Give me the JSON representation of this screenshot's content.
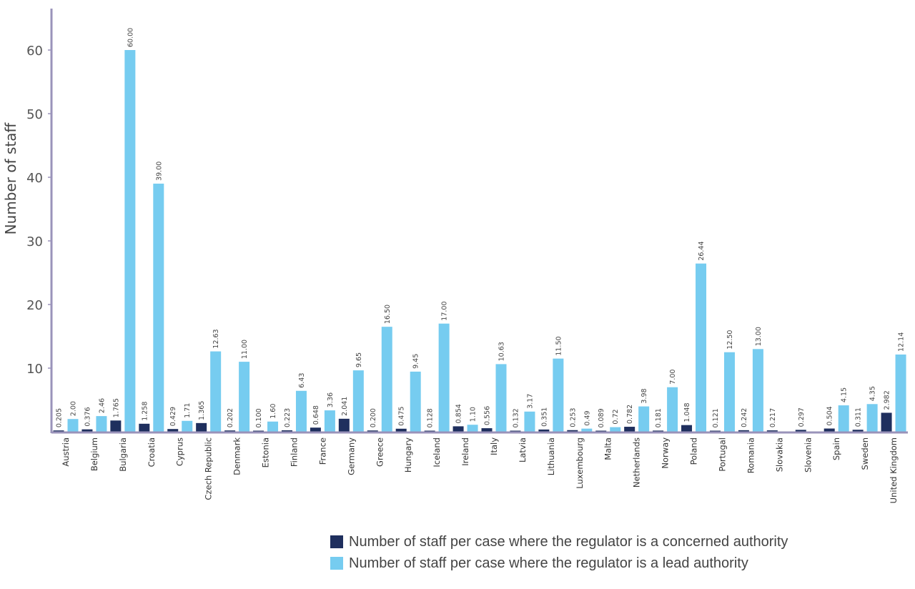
{
  "chart_data": {
    "type": "bar",
    "ylabel": "Number of staff",
    "xlabel": "",
    "ylim": [
      0,
      66
    ],
    "yticks": [
      10,
      20,
      30,
      40,
      50,
      60
    ],
    "grid": false,
    "legend_position": "bottom-right",
    "categories": [
      "Austria",
      "Belgium",
      "Bulgaria",
      "Croatia",
      "Cyprus",
      "Czech Republic",
      "Denmark",
      "Estonia",
      "Finland",
      "France",
      "Germany",
      "Greece",
      "Hungary",
      "Iceland",
      "Ireland",
      "Italy",
      "Latvia",
      "Lithuania",
      "Luxembourg",
      "Malta",
      "Netherlands",
      "Norway",
      "Poland",
      "Portugal",
      "Romania",
      "Slovakia",
      "Slovenia",
      "Spain",
      "Sweden",
      "United Kingdom"
    ],
    "series": [
      {
        "name": "Number of staff per case where the regulator is a concerned authority",
        "color": "#1f2f5e",
        "values": [
          0.205,
          0.376,
          1.765,
          1.258,
          0.429,
          1.365,
          0.202,
          0.1,
          0.223,
          0.648,
          2.041,
          0.2,
          0.475,
          0.128,
          0.854,
          0.556,
          0.132,
          0.351,
          0.253,
          0.089,
          0.782,
          0.181,
          1.048,
          0.121,
          0.242,
          0.217,
          0.297,
          0.504,
          0.311,
          2.982
        ],
        "labels": [
          "0.205",
          "0.376",
          "1.765",
          "1.258",
          "0.429",
          "1.365",
          "0.202",
          "0.100",
          "0.223",
          "0.648",
          "2.041",
          "0.200",
          "0.475",
          "0.128",
          "0.854",
          "0.556",
          "0.132",
          "0.351",
          "0.253",
          "0.089",
          "0.782",
          "0.181",
          "1.048",
          "0.121",
          "0.242",
          "0.217",
          "0.297",
          "0.504",
          "0.311",
          "2.982"
        ]
      },
      {
        "name": "Number of staff per case where the regulator is a lead authority",
        "color": "#76ccf0",
        "values": [
          2.0,
          2.46,
          60.0,
          39.0,
          1.71,
          12.63,
          11.0,
          1.6,
          6.43,
          3.36,
          9.65,
          16.5,
          9.45,
          17.0,
          1.1,
          10.63,
          3.17,
          11.5,
          0.49,
          0.72,
          3.98,
          7.0,
          26.44,
          12.5,
          13.0,
          null,
          null,
          4.15,
          4.35,
          12.14
        ],
        "labels": [
          "2.00",
          "2.46",
          "60.00",
          "39.00",
          "1.71",
          "12.63",
          "11.00",
          "1.60",
          "6.43",
          "3.36",
          "9.65",
          "16.50",
          "9.45",
          "17.00",
          "1.10",
          "10.63",
          "3.17",
          "11.50",
          "0.49",
          "0.72",
          "3.98",
          "7.00",
          "26.44",
          "12.50",
          "13.00",
          null,
          null,
          "4.15",
          "4.35",
          "12.14"
        ]
      }
    ],
    "axis_color": "#9a93ba"
  }
}
